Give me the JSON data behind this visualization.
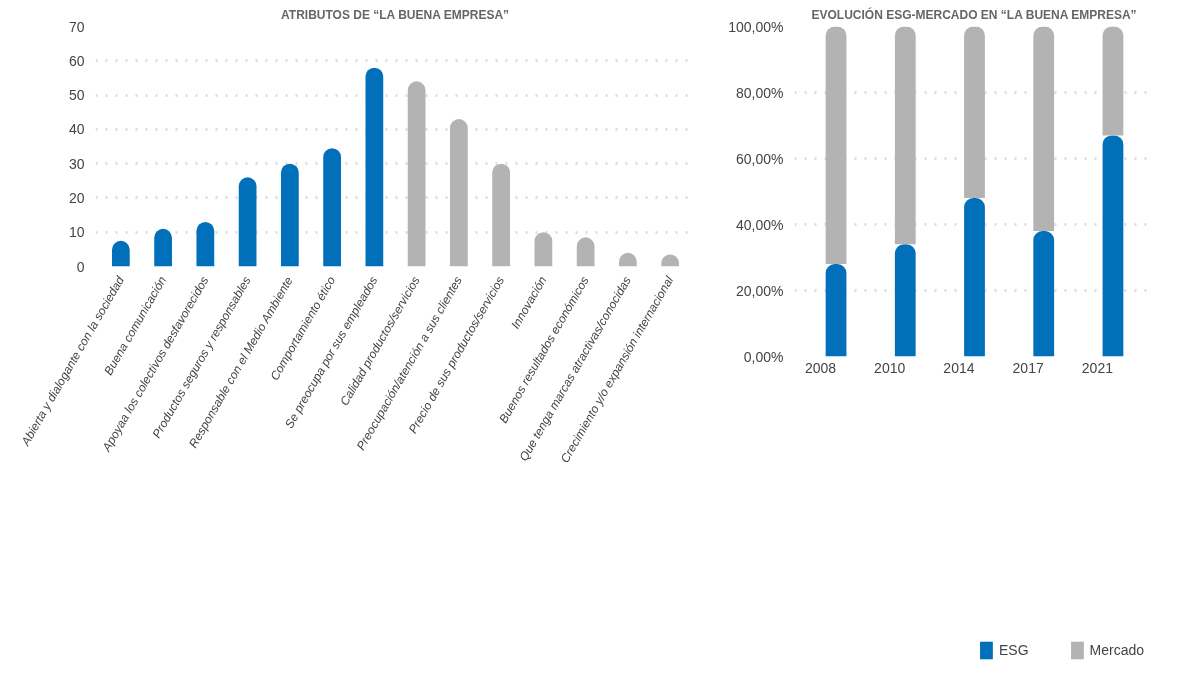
{
  "chart_data": [
    {
      "type": "bar",
      "title": "ATRIBUTOS DE “LA BUENA EMPRESA”",
      "categories": [
        "Abierta y dialogante con la sociedad",
        "Buena comunicación",
        "Apoyaa los colectivos desfavorecidos",
        "Productos seguros y responsables",
        "Responsable con el Medio Ambiente",
        "Comportamiento ético",
        "Se preocupa por sus empleados",
        "Calidad productos/servicios",
        "Preocupación/atención a sus clientes",
        "Precio de sus productos/servicios",
        "Innovación",
        "Buenos resultados económicos",
        "Que tenga marcas atractivas/conocidas",
        "Crecimiento y/o expansión internacional"
      ],
      "values": [
        7.5,
        11,
        13,
        26,
        30,
        34.5,
        58,
        54,
        43,
        30,
        10,
        8.5,
        4,
        3.5
      ],
      "colors": [
        "#0070ba",
        "#0070ba",
        "#0070ba",
        "#0070ba",
        "#0070ba",
        "#0070ba",
        "#0070ba",
        "#b3b3b3",
        "#b3b3b3",
        "#b3b3b3",
        "#b3b3b3",
        "#b3b3b3",
        "#b3b3b3",
        "#b3b3b3"
      ],
      "ylim": [
        0,
        70
      ],
      "yticks": [
        0,
        10,
        20,
        30,
        40,
        50,
        60,
        70
      ],
      "grid": "y",
      "legend": false
    },
    {
      "type": "bar",
      "title": "EVOLUCIÓN ESG-MERCADO EN “LA BUENA EMPRESA”",
      "stacked": true,
      "categories": [
        "2008",
        "2010",
        "2014",
        "2017",
        "2021"
      ],
      "series": [
        {
          "name": "ESG",
          "color": "#0070ba",
          "values": [
            28,
            34,
            48,
            38,
            67
          ]
        },
        {
          "name": "Mercado",
          "color": "#b3b3b3",
          "values": [
            72,
            66,
            52,
            62,
            33
          ]
        }
      ],
      "ylim": [
        0,
        100
      ],
      "yticks": [
        {
          "value": 0,
          "label": "0,00%"
        },
        {
          "value": 20,
          "label": "20,00%"
        },
        {
          "value": 40,
          "label": "40,00%"
        },
        {
          "value": 60,
          "label": "60,00%"
        },
        {
          "value": 80,
          "label": "80,00%"
        },
        {
          "value": 100,
          "label": "100,00%"
        }
      ],
      "grid": "y",
      "legend": "bottom"
    }
  ]
}
